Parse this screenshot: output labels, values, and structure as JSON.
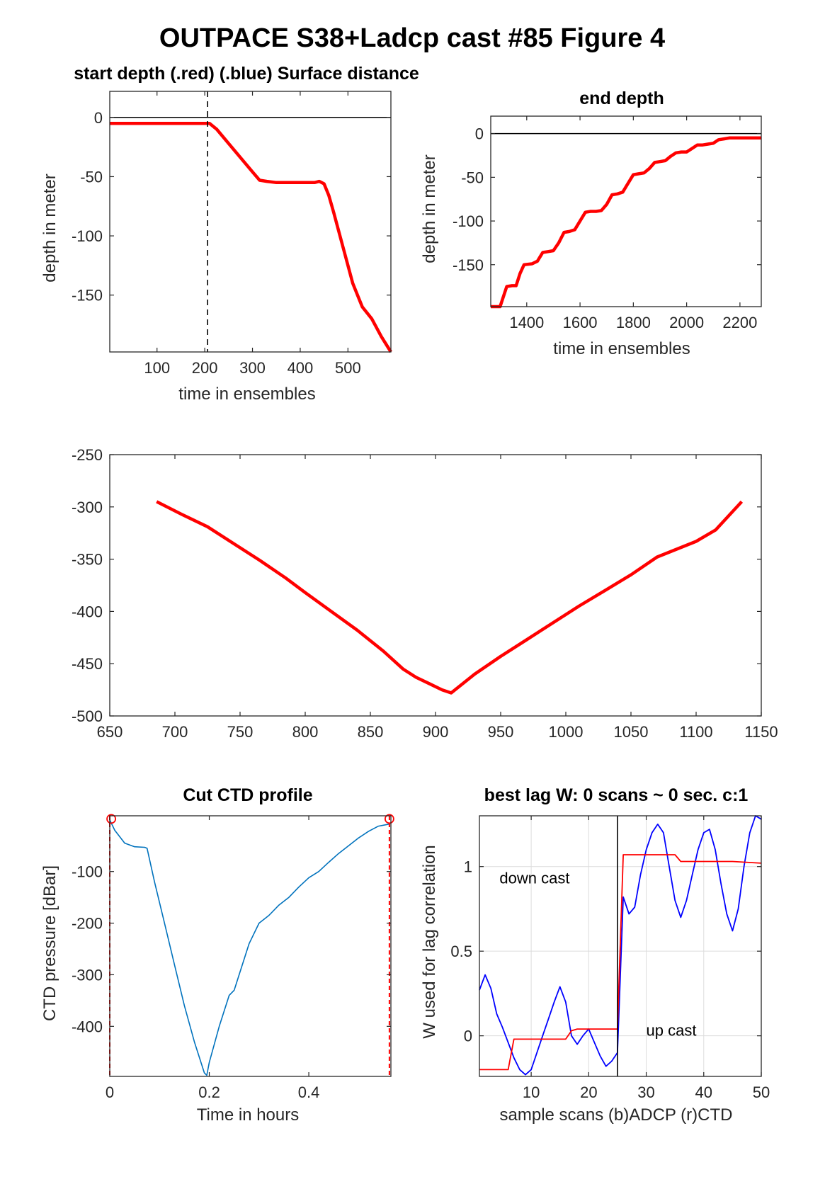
{
  "figure": {
    "title": "OUTPACE S38+Ladcp cast #85   Figure 4"
  },
  "colors": {
    "red": "#ff0000",
    "blue": "#0000ff",
    "ctd": "#0072bd",
    "axis": "#262626",
    "grid": "#dcdcdc"
  },
  "chart_data": [
    {
      "id": "start-depth",
      "type": "line",
      "title": "start depth (.red) (.blue) Surface distance",
      "xlabel": "time in ensembles",
      "ylabel": "depth in meter",
      "xlim": [
        1,
        590
      ],
      "ylim": [
        -198,
        22
      ],
      "xticks": [
        100,
        200,
        300,
        400,
        500
      ],
      "yticks": [
        -150,
        -100,
        -50,
        0
      ],
      "hline": 0,
      "vline": 206,
      "series": [
        {
          "color": "red",
          "x": [
            1,
            100,
            200,
            210,
            225,
            250,
            275,
            300,
            315,
            330,
            350,
            400,
            430,
            440,
            450,
            460,
            470,
            490,
            510,
            530,
            550,
            570,
            590
          ],
          "y": [
            -5,
            -5,
            -5,
            -5,
            -10,
            -22,
            -34,
            -46,
            -53,
            -54,
            -55,
            -55,
            -55,
            -54,
            -56,
            -66,
            -80,
            -110,
            -140,
            -160,
            -170,
            -185,
            -198
          ]
        }
      ]
    },
    {
      "id": "end-depth",
      "type": "line",
      "title": "end depth",
      "xlabel": "time in ensembles",
      "ylabel": "depth in meter",
      "xlim": [
        1265,
        2280
      ],
      "ylim": [
        -198,
        20
      ],
      "xticks": [
        1400,
        1600,
        1800,
        2000,
        2200
      ],
      "yticks": [
        -150,
        -100,
        -50,
        0
      ],
      "hline": 0,
      "series": [
        {
          "color": "red",
          "x": [
            1265,
            1300,
            1325,
            1345,
            1360,
            1375,
            1390,
            1420,
            1440,
            1460,
            1480,
            1500,
            1520,
            1540,
            1560,
            1580,
            1600,
            1620,
            1640,
            1660,
            1680,
            1700,
            1720,
            1740,
            1760,
            1780,
            1800,
            1820,
            1840,
            1860,
            1880,
            1900,
            1920,
            1940,
            1960,
            1980,
            2000,
            2020,
            2040,
            2060,
            2080,
            2100,
            2120,
            2140,
            2160,
            2180,
            2200,
            2230,
            2280
          ],
          "y": [
            -198,
            -198,
            -175,
            -174,
            -174,
            -160,
            -150,
            -149,
            -146,
            -136,
            -135,
            -134,
            -125,
            -113,
            -112,
            -110,
            -100,
            -90,
            -89,
            -89,
            -88,
            -81,
            -70,
            -69,
            -67,
            -57,
            -47,
            -46,
            -45,
            -40,
            -33,
            -32,
            -31,
            -26,
            -22,
            -21,
            -21,
            -17,
            -13,
            -13,
            -12,
            -11,
            -7,
            -6,
            -5,
            -5,
            -5,
            -5,
            -5
          ]
        }
      ]
    },
    {
      "id": "profile",
      "type": "line",
      "title": "",
      "xlabel": "",
      "ylabel": "",
      "xlim": [
        650,
        1150
      ],
      "ylim": [
        -500,
        -250
      ],
      "xticks": [
        650,
        700,
        750,
        800,
        850,
        900,
        950,
        1000,
        1050,
        1100,
        1150
      ],
      "yticks": [
        -500,
        -450,
        -400,
        -350,
        -300,
        -250
      ],
      "series": [
        {
          "color": "red",
          "x": [
            686,
            705,
            725,
            745,
            765,
            785,
            800,
            820,
            840,
            860,
            875,
            885,
            895,
            905,
            912,
            930,
            950,
            970,
            990,
            1010,
            1030,
            1050,
            1070,
            1090,
            1100,
            1115,
            1135
          ],
          "y": [
            -295,
            -307,
            -319,
            -335,
            -351,
            -368,
            -382,
            -400,
            -418,
            -438,
            -455,
            -463,
            -469,
            -475,
            -478,
            -460,
            -443,
            -427,
            -411,
            -395,
            -380,
            -365,
            -348,
            -338,
            -333,
            -322,
            -295
          ]
        }
      ]
    },
    {
      "id": "cut-ctd",
      "type": "line",
      "title": "Cut CTD profile",
      "xlabel": "Time in hours",
      "ylabel": "CTD pressure [dBar]",
      "xlim": [
        0,
        0.565
      ],
      "ylim": [
        -497,
        8
      ],
      "xticks": [
        0,
        0.2,
        0.4
      ],
      "yticks": [
        -400,
        -300,
        -200,
        -100
      ],
      "vlines": [
        0.0,
        0.562
      ],
      "markers": [
        [
          0.003,
          2
        ],
        [
          0.562,
          2
        ]
      ],
      "series": [
        {
          "color": "ctd",
          "x": [
            0.0,
            0.01,
            0.03,
            0.05,
            0.07,
            0.075,
            0.09,
            0.11,
            0.13,
            0.15,
            0.17,
            0.19,
            0.195,
            0.2,
            0.22,
            0.24,
            0.25,
            0.26,
            0.28,
            0.3,
            0.32,
            0.34,
            0.36,
            0.38,
            0.4,
            0.42,
            0.44,
            0.46,
            0.48,
            0.5,
            0.52,
            0.54,
            0.562
          ],
          "y": [
            0,
            -20,
            -45,
            -52,
            -53,
            -55,
            -120,
            -200,
            -280,
            -360,
            -430,
            -490,
            -495,
            -470,
            -400,
            -340,
            -330,
            -300,
            -240,
            -200,
            -185,
            -165,
            -150,
            -130,
            -112,
            -100,
            -82,
            -65,
            -50,
            -35,
            -22,
            -12,
            -8
          ]
        }
      ]
    },
    {
      "id": "best-lag",
      "type": "line",
      "title": "best lag W: 0 scans ~ 0 sec.  c:1",
      "xlabel": "sample scans (b)ADCP (r)CTD",
      "ylabel": "W used for lag correlation",
      "xlim": [
        1,
        50
      ],
      "ylim": [
        -0.24,
        1.3
      ],
      "xticks": [
        10,
        20,
        30,
        40,
        50
      ],
      "yticks": [
        0,
        0.5,
        1
      ],
      "grid": true,
      "vline": 25,
      "annotations": [
        {
          "text": "down cast",
          "x": 4.5,
          "y": 0.9
        },
        {
          "text": "up cast",
          "x": 30,
          "y": 0.0
        }
      ],
      "series": [
        {
          "name": "(b)ADCP",
          "color": "blue",
          "x": [
            1,
            2,
            3,
            4,
            5,
            6,
            7,
            8,
            9,
            10,
            11,
            12,
            13,
            14,
            15,
            16,
            17,
            18,
            19,
            20,
            21,
            22,
            23,
            24,
            25,
            26,
            27,
            28,
            29,
            30,
            31,
            32,
            33,
            34,
            35,
            36,
            37,
            38,
            39,
            40,
            41,
            42,
            43,
            44,
            45,
            46,
            47,
            48,
            49,
            50
          ],
          "y": [
            0.27,
            0.36,
            0.28,
            0.13,
            0.05,
            -0.04,
            -0.13,
            -0.2,
            -0.23,
            -0.2,
            -0.1,
            0.0,
            0.1,
            0.2,
            0.29,
            0.2,
            0.0,
            -0.05,
            0.0,
            0.04,
            -0.04,
            -0.12,
            -0.18,
            -0.15,
            -0.1,
            0.82,
            0.72,
            0.76,
            0.95,
            1.1,
            1.2,
            1.25,
            1.2,
            1.0,
            0.8,
            0.7,
            0.8,
            0.95,
            1.1,
            1.2,
            1.22,
            1.1,
            0.9,
            0.72,
            0.62,
            0.75,
            1.0,
            1.2,
            1.3,
            1.28
          ]
        },
        {
          "name": "(r)CTD",
          "color": "red",
          "x": [
            1,
            5,
            6,
            7,
            8,
            12,
            16,
            17,
            18,
            24,
            25,
            26,
            28,
            34,
            35,
            36,
            40,
            45,
            50
          ],
          "y": [
            -0.2,
            -0.2,
            -0.2,
            -0.02,
            -0.02,
            -0.02,
            -0.02,
            0.03,
            0.04,
            0.04,
            0.04,
            1.07,
            1.07,
            1.07,
            1.07,
            1.03,
            1.03,
            1.03,
            1.02
          ]
        }
      ]
    }
  ]
}
